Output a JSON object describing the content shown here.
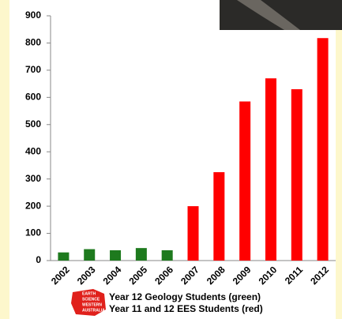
{
  "chart_data": {
    "type": "bar",
    "categories": [
      "2002",
      "2003",
      "2004",
      "2005",
      "2006",
      "2007",
      "2008",
      "2009",
      "2010",
      "2011",
      "2012"
    ],
    "values": [
      30,
      42,
      38,
      46,
      38,
      200,
      325,
      585,
      670,
      630,
      818
    ],
    "colors": [
      "#1e7a1e",
      "#1e7a1e",
      "#1e7a1e",
      "#1e7a1e",
      "#1e7a1e",
      "#ff0000",
      "#ff0000",
      "#ff0000",
      "#ff0000",
      "#ff0000",
      "#ff0000"
    ],
    "ylim": [
      0,
      900
    ],
    "yticks": [
      0,
      100,
      200,
      300,
      400,
      500,
      600,
      700,
      800,
      900
    ],
    "grid": false,
    "legend": [
      "Year 12 Geology Students (green)",
      "Year 11 and 12 EES Students (red)"
    ],
    "logo": [
      "EARTH",
      "SCIENCE",
      "WESTERN",
      "AUSTRALIA"
    ]
  }
}
